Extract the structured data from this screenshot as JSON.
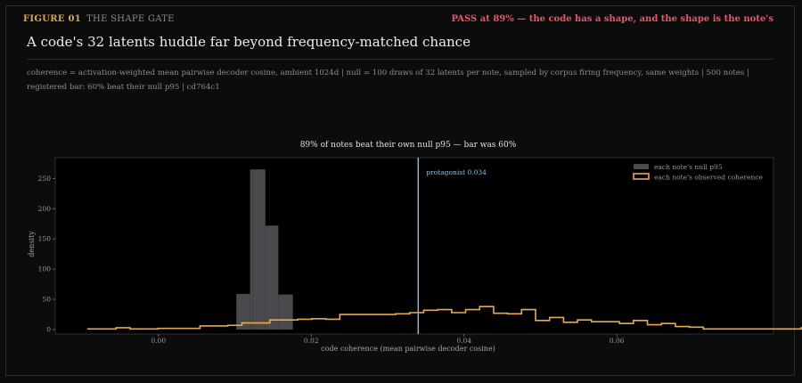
{
  "figure": {
    "number": "FIGURE 01",
    "name": "THE SHAPE GATE",
    "verdict": "PASS at 89% — the code has a shape, and the shape is the note's",
    "headline": "A code's 32 latents huddle far beyond frequency-matched chance",
    "caption": "coherence = activation-weighted mean pairwise decoder cosine, ambient 1024d | null = 100 draws of 32 latents per note, sampled by corpus firing frequency, same weights | 500 notes | registered bar: 60% beat their null p95 | cd764c1"
  },
  "chart_data": {
    "type": "bar",
    "title": "89% of notes beat their own null p95 — bar was 60%",
    "xlabel": "code coherence (mean pairwise decoder cosine)",
    "ylabel": "density",
    "xlim": [
      -0.0135,
      0.0805
    ],
    "ylim": [
      0,
      280
    ],
    "xticks": [
      0.0,
      0.02,
      0.04,
      0.06
    ],
    "xtick_labels": [
      "0.00",
      "0.02",
      "0.04",
      "0.06"
    ],
    "yticks": [
      0,
      50,
      100,
      150,
      200,
      250
    ],
    "ytick_labels": [
      "0",
      "50",
      "100",
      "150",
      "200",
      "250"
    ],
    "legend_position": "top-right",
    "null_series": {
      "name": "each note's null p95",
      "color": "#4a4a4e",
      "bin_edges": [
        0.0102,
        0.012,
        0.0123,
        0.014,
        0.0157,
        0.0176
      ],
      "values": [
        59,
        265,
        265,
        172,
        58
      ]
    },
    "observed_series": {
      "name": "each note's observed coherence",
      "color": "#e8a94f",
      "bin_start": -0.0092,
      "bin_width": 0.00183,
      "values": [
        1,
        1,
        3,
        1,
        1,
        2,
        2,
        2,
        6,
        6,
        7,
        11,
        11,
        16,
        16,
        17,
        18,
        17,
        25,
        25,
        25,
        25,
        26,
        28,
        32,
        33,
        28,
        33,
        38,
        27,
        26,
        33,
        15,
        20,
        12,
        16,
        13,
        13,
        10,
        15,
        8,
        10,
        5,
        4,
        1,
        1,
        1,
        1,
        1,
        1,
        1,
        3,
        1,
        0,
        0
      ]
    },
    "protagonist": {
      "label": "protagonist 0.034",
      "value": 0.034,
      "color": "#7fc4e6"
    }
  }
}
